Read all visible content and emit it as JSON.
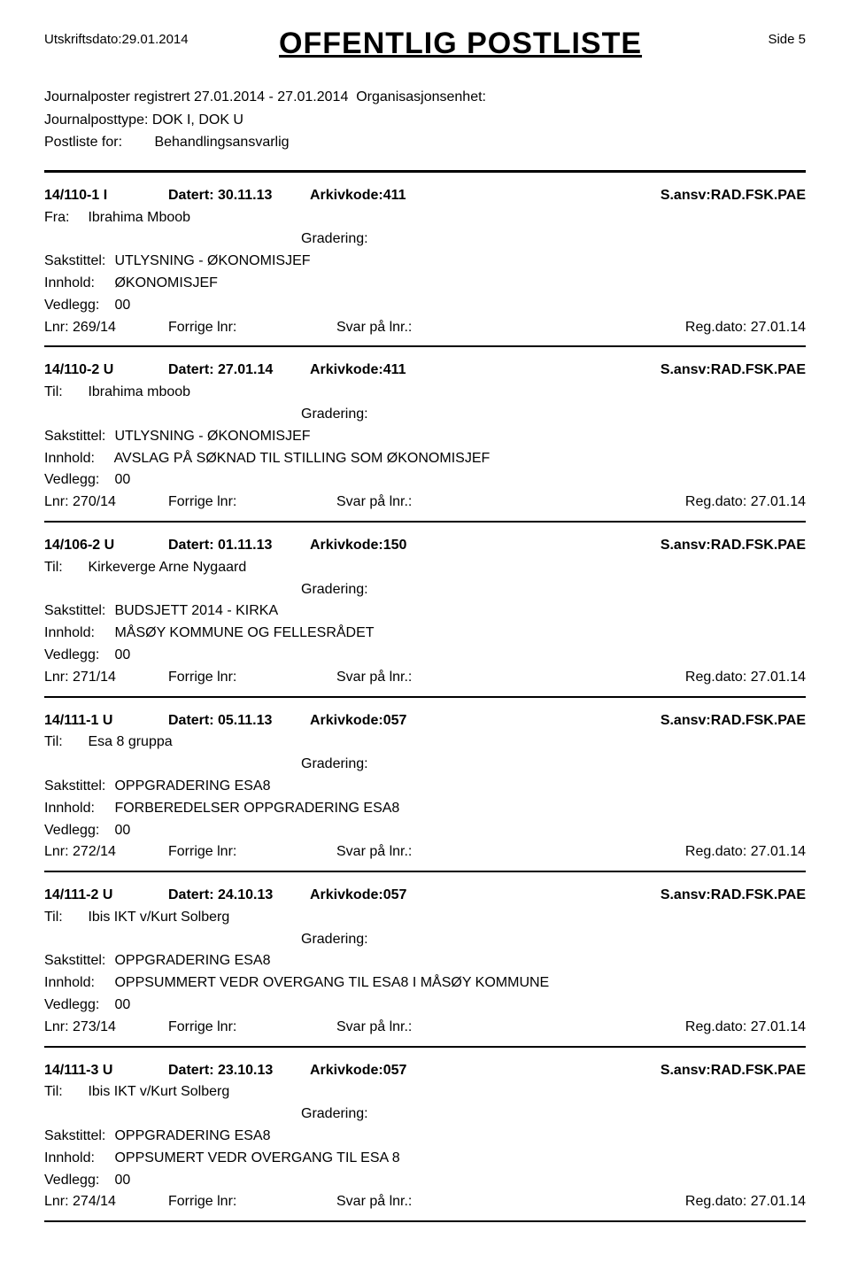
{
  "header": {
    "print_date_label": "Utskriftsdato:",
    "print_date": "29.01.2014",
    "title": "OFFENTLIG POSTLISTE",
    "side_label": "Side",
    "side_num": "5"
  },
  "meta": {
    "journal_registered_label": "Journalposter registrert",
    "journal_registered_range": "27.01.2014  -  27.01.2014",
    "org_unit_label": "Organisasjonsenhet:",
    "org_unit": "",
    "journal_type_label": "Journalposttype:",
    "journal_type": "DOK I, DOK U",
    "postliste_for_label": "Postliste for:",
    "postliste_for": "Behandlingsansvarlig"
  },
  "labels": {
    "datert": "Datert:",
    "arkivkode": "Arkivkode:",
    "sansv": "S.ansv:",
    "fra": "Fra:",
    "til": "Til:",
    "gradering": "Gradering:",
    "sakstittel": "Sakstittel:",
    "innhold": "Innhold:",
    "vedlegg": "Vedlegg:",
    "lnr": "Lnr:",
    "forrige_lnr": "Forrige lnr:",
    "svar_pa_lnr": "Svar på lnr.:",
    "regdato": "Reg.dato:"
  },
  "entries": [
    {
      "id": "14/110-1  I",
      "datert": "30.11.13",
      "arkivkode": "411",
      "sansv": "RAD.FSK.PAE",
      "dir_label": "Fra:",
      "party": "Ibrahima Mboob",
      "gradering": "",
      "sakstittel": "UTLYSNING - ØKONOMISJEF",
      "innhold": "ØKONOMISJEF",
      "vedlegg": "00",
      "lnr": "269/14",
      "forrige_lnr": "",
      "svar_pa_lnr": "",
      "regdato": "27.01.14"
    },
    {
      "id": "14/110-2  U",
      "datert": "27.01.14",
      "arkivkode": "411",
      "sansv": "RAD.FSK.PAE",
      "dir_label": "Til:",
      "party": "Ibrahima mboob",
      "gradering": "",
      "sakstittel": "UTLYSNING - ØKONOMISJEF",
      "innhold": "AVSLAG PÅ SØKNAD TIL STILLING SOM ØKONOMISJEF",
      "vedlegg": "00",
      "lnr": "270/14",
      "forrige_lnr": "",
      "svar_pa_lnr": "",
      "regdato": "27.01.14"
    },
    {
      "id": "14/106-2  U",
      "datert": "01.11.13",
      "arkivkode": "150",
      "sansv": "RAD.FSK.PAE",
      "dir_label": "Til:",
      "party": "Kirkeverge Arne Nygaard",
      "gradering": "",
      "sakstittel": "BUDSJETT 2014 - KIRKA",
      "innhold": "MÅSØY KOMMUNE OG FELLESRÅDET",
      "vedlegg": "00",
      "lnr": "271/14",
      "forrige_lnr": "",
      "svar_pa_lnr": "",
      "regdato": "27.01.14"
    },
    {
      "id": "14/111-1  U",
      "datert": "05.11.13",
      "arkivkode": "057",
      "sansv": "RAD.FSK.PAE",
      "dir_label": "Til:",
      "party": "Esa 8 gruppa",
      "gradering": "",
      "sakstittel": "OPPGRADERING ESA8",
      "innhold": "FORBEREDELSER OPPGRADERING ESA8",
      "vedlegg": "00",
      "lnr": "272/14",
      "forrige_lnr": "",
      "svar_pa_lnr": "",
      "regdato": "27.01.14"
    },
    {
      "id": "14/111-2  U",
      "datert": "24.10.13",
      "arkivkode": "057",
      "sansv": "RAD.FSK.PAE",
      "dir_label": "Til:",
      "party": "Ibis IKT v/Kurt Solberg",
      "gradering": "",
      "sakstittel": "OPPGRADERING ESA8",
      "innhold": "OPPSUMMERT VEDR OVERGANG TIL ESA8 I MÅSØY KOMMUNE",
      "vedlegg": "00",
      "lnr": "273/14",
      "forrige_lnr": "",
      "svar_pa_lnr": "",
      "regdato": "27.01.14"
    },
    {
      "id": "14/111-3  U",
      "datert": "23.10.13",
      "arkivkode": "057",
      "sansv": "RAD.FSK.PAE",
      "dir_label": "Til:",
      "party": "Ibis IKT v/Kurt Solberg",
      "gradering": "",
      "sakstittel": "OPPGRADERING ESA8",
      "innhold": "OPPSUMERT VEDR OVERGANG TIL ESA 8",
      "vedlegg": "00",
      "lnr": "274/14",
      "forrige_lnr": "",
      "svar_pa_lnr": "",
      "regdato": "27.01.14"
    }
  ]
}
